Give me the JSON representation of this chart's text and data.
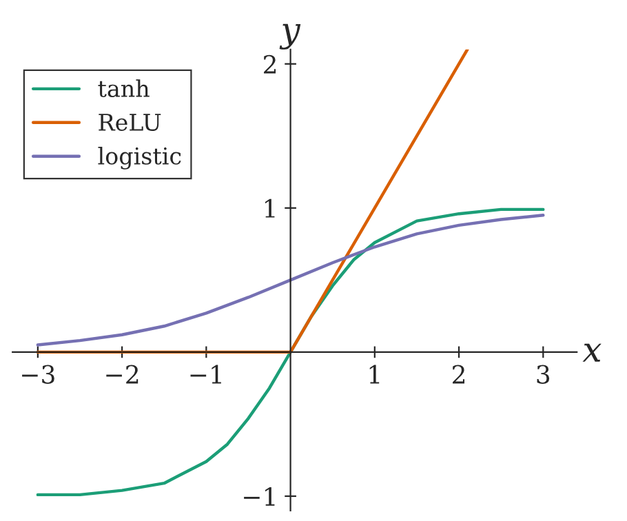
{
  "chart_data": {
    "type": "line",
    "xlabel": "x",
    "ylabel": "y",
    "xlim": [
      -3.3,
      3.4
    ],
    "ylim": [
      -1.1,
      2.1
    ],
    "xticks": [
      {
        "value": -3,
        "label": "−3"
      },
      {
        "value": -2,
        "label": "−2"
      },
      {
        "value": -1,
        "label": "−1"
      },
      1,
      2,
      3
    ],
    "yticks": [
      {
        "value": -1,
        "label": "−1"
      },
      1,
      2
    ],
    "grid": false,
    "legend": "top left",
    "marker": "none",
    "line_style": "solid",
    "series": [
      {
        "name": "tanh",
        "color": "#1b9e77",
        "x": [
          -3,
          -2.5,
          -2,
          -1.5,
          -1,
          -0.75,
          -0.5,
          -0.25,
          0,
          0.25,
          0.5,
          0.75,
          1,
          1.5,
          2,
          2.5,
          3
        ],
        "values": [
          -0.99,
          -0.99,
          -0.96,
          -0.91,
          -0.76,
          -0.64,
          -0.46,
          -0.25,
          0,
          0.25,
          0.46,
          0.64,
          0.76,
          0.91,
          0.96,
          0.99,
          0.99
        ]
      },
      {
        "name": "ReLU",
        "color": "#d95f02",
        "x": [
          -3,
          0,
          2.1
        ],
        "values": [
          0,
          0,
          2.1
        ]
      },
      {
        "name": "logistic",
        "color": "#7570b3",
        "x": [
          -3,
          -2.5,
          -2,
          -1.5,
          -1,
          -0.5,
          0,
          0.5,
          1,
          1.5,
          2,
          2.5,
          3
        ],
        "values": [
          0.05,
          0.08,
          0.12,
          0.18,
          0.27,
          0.38,
          0.5,
          0.62,
          0.73,
          0.82,
          0.88,
          0.92,
          0.95
        ]
      }
    ]
  }
}
